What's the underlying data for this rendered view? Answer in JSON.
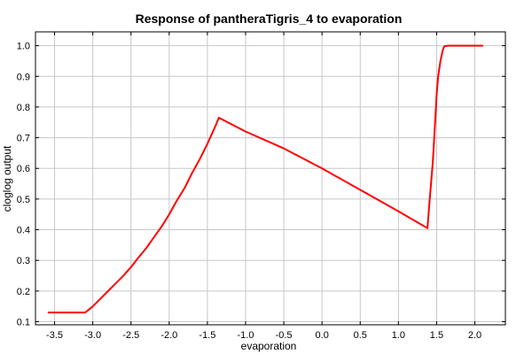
{
  "chart_data": {
    "type": "line",
    "title": "Response of pantheraTigris_4 to evaporation",
    "xlabel": "evaporation",
    "ylabel": "cloglog output",
    "xlim": [
      -3.75,
      2.4
    ],
    "ylim": [
      0.09,
      1.045
    ],
    "x_ticks": [
      -3.5,
      -3.0,
      -2.5,
      -2.0,
      -1.5,
      -1.0,
      -0.5,
      0.0,
      0.5,
      1.0,
      1.5,
      2.0
    ],
    "x_tick_labels": [
      "-3.5",
      "-3.0",
      "-2.5",
      "-2.0",
      "-1.5",
      "-1.0",
      "-0.5",
      "0.0",
      "0.5",
      "1.0",
      "1.5",
      "2.0"
    ],
    "y_ticks": [
      0.1,
      0.2,
      0.3,
      0.4,
      0.5,
      0.6,
      0.7,
      0.8,
      0.9,
      1.0
    ],
    "y_tick_labels": [
      "0.1",
      "0.2",
      "0.3",
      "0.4",
      "0.5",
      "0.6",
      "0.7",
      "0.8",
      "0.9",
      "1.0"
    ],
    "grid": true,
    "legend": "none",
    "colors": {
      "line": "#ff0000",
      "grid": "#c8c8c8",
      "frame": "#000000"
    },
    "series": [
      {
        "x": [
          -3.58,
          -3.1,
          -3.05,
          -3.0,
          -2.9,
          -2.8,
          -2.7,
          -2.6,
          -2.5,
          -2.4,
          -2.3,
          -2.2,
          -2.1,
          -2.0,
          -1.9,
          -1.8,
          -1.7,
          -1.6,
          -1.5,
          -1.4,
          -1.35,
          -1.0,
          -0.5,
          0.0,
          0.5,
          1.0,
          1.38,
          1.4,
          1.45,
          1.48,
          1.5,
          1.52,
          1.55,
          1.58,
          1.6,
          1.65,
          2.1
        ],
        "y": [
          0.13,
          0.13,
          0.14,
          0.15,
          0.175,
          0.2,
          0.225,
          0.25,
          0.278,
          0.31,
          0.34,
          0.375,
          0.41,
          0.45,
          0.495,
          0.535,
          0.585,
          0.63,
          0.68,
          0.735,
          0.765,
          0.72,
          0.665,
          0.6,
          0.53,
          0.46,
          0.405,
          0.47,
          0.62,
          0.75,
          0.84,
          0.9,
          0.95,
          0.985,
          0.998,
          1.0,
          1.0
        ]
      }
    ]
  }
}
